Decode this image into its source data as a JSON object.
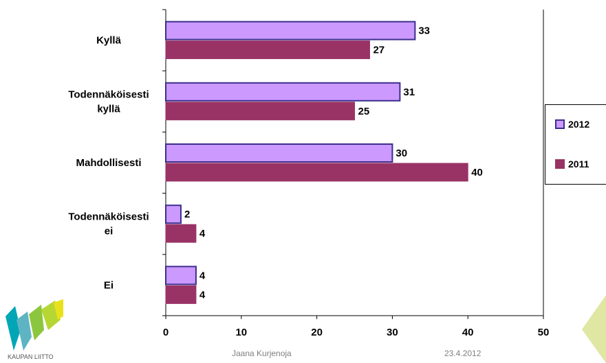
{
  "chart_data": {
    "type": "bar",
    "orientation": "horizontal",
    "categories": [
      "Kyllä",
      "Todennäköisesti kyllä",
      "Mahdollisesti",
      "Todennäköisesti ei",
      "Ei"
    ],
    "category_lines": [
      [
        "Kyllä"
      ],
      [
        "Todennäköisesti",
        "kyllä"
      ],
      [
        "Mahdollisesti"
      ],
      [
        "Todennäköisesti",
        "ei"
      ],
      [
        "Ei"
      ]
    ],
    "series": [
      {
        "name": "2012",
        "values": [
          33,
          31,
          30,
          2,
          4
        ],
        "color": "#cc99ff",
        "stroke": "#3a2f8c"
      },
      {
        "name": "2011",
        "values": [
          27,
          25,
          40,
          4,
          4
        ],
        "color": "#993366",
        "stroke": "#993366"
      }
    ],
    "xlim": [
      0,
      50
    ],
    "xticks": [
      0,
      10,
      20,
      30,
      40,
      50
    ],
    "legend_position": "right",
    "grid": false
  },
  "footer": {
    "author": "Jaana Kurjenoja",
    "date": "23.4.2012"
  },
  "logo": {
    "text": "KAUPAN LIITTO",
    "colors": [
      "#00a6b6",
      "#8cc63f",
      "#e8e21c",
      "#5fb4c4"
    ]
  },
  "decoration_color": "#dfe7a3"
}
